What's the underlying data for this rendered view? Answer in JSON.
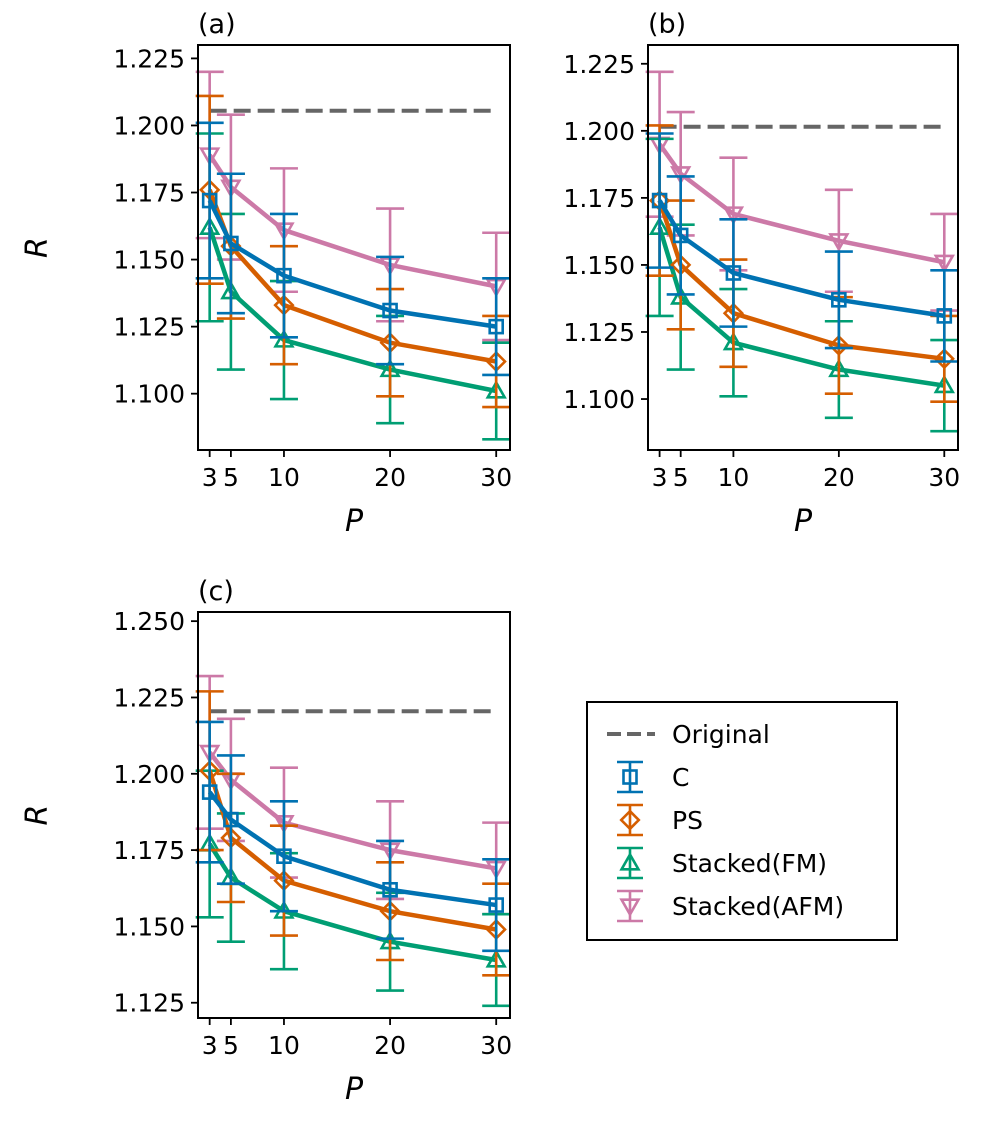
{
  "colors": {
    "C": "#0072b2",
    "PS": "#d55e00",
    "Stacked(FM)": "#009e73",
    "Stacked(AFM)": "#cc79a7",
    "Original": "#666666"
  },
  "legend": {
    "placement": "right of panel (c)",
    "entries": [
      {
        "label": "Original",
        "style": "dashed-line"
      },
      {
        "label": "C",
        "marker": "square"
      },
      {
        "label": "PS",
        "marker": "diamond"
      },
      {
        "label": "Stacked(FM)",
        "marker": "triangle-up"
      },
      {
        "label": "Stacked(AFM)",
        "marker": "triangle-down"
      }
    ]
  },
  "chart_data": [
    {
      "panel": "(a)",
      "type": "line",
      "xlabel": "P",
      "ylabel": "R",
      "x": [
        3,
        5,
        10,
        20,
        30
      ],
      "xticks": [
        3,
        5,
        10,
        20,
        30
      ],
      "yticks": [
        1.1,
        1.125,
        1.15,
        1.175,
        1.2,
        1.225
      ],
      "ytick_labels": [
        "1.100",
        "1.125",
        "1.150",
        "1.175",
        "1.200",
        "1.225"
      ],
      "ylim": [
        1.079,
        1.23
      ],
      "original": 1.2055,
      "series": [
        {
          "name": "C",
          "values": [
            1.172,
            1.156,
            1.144,
            1.131,
            1.125
          ],
          "err": [
            0.029,
            0.026,
            0.023,
            0.02,
            0.018
          ]
        },
        {
          "name": "PS",
          "values": [
            1.176,
            1.155,
            1.133,
            1.119,
            1.112
          ],
          "err": [
            0.035,
            0.027,
            0.022,
            0.02,
            0.017
          ]
        },
        {
          "name": "Stacked(FM)",
          "values": [
            1.162,
            1.138,
            1.12,
            1.109,
            1.101
          ],
          "err": [
            0.035,
            0.029,
            0.022,
            0.02,
            0.018
          ]
        },
        {
          "name": "Stacked(AFM)",
          "values": [
            1.189,
            1.177,
            1.161,
            1.148,
            1.14
          ],
          "err": [
            0.031,
            0.027,
            0.023,
            0.021,
            0.02
          ]
        }
      ]
    },
    {
      "panel": "(b)",
      "type": "line",
      "xlabel": "P",
      "ylabel": "",
      "x": [
        3,
        5,
        10,
        20,
        30
      ],
      "xticks": [
        3,
        5,
        10,
        20,
        30
      ],
      "yticks": [
        1.1,
        1.125,
        1.15,
        1.175,
        1.2,
        1.225
      ],
      "ytick_labels": [
        "1.100",
        "1.125",
        "1.150",
        "1.175",
        "1.200",
        "1.225"
      ],
      "ylim": [
        1.081,
        1.232
      ],
      "original": 1.2015,
      "series": [
        {
          "name": "C",
          "values": [
            1.174,
            1.161,
            1.147,
            1.137,
            1.131
          ],
          "err": [
            0.025,
            0.022,
            0.02,
            0.018,
            0.017
          ]
        },
        {
          "name": "PS",
          "values": [
            1.174,
            1.15,
            1.132,
            1.12,
            1.115
          ],
          "err": [
            0.028,
            0.024,
            0.02,
            0.018,
            0.016
          ]
        },
        {
          "name": "Stacked(FM)",
          "values": [
            1.164,
            1.138,
            1.121,
            1.111,
            1.105
          ],
          "err": [
            0.033,
            0.027,
            0.02,
            0.018,
            0.017
          ]
        },
        {
          "name": "Stacked(AFM)",
          "values": [
            1.195,
            1.184,
            1.169,
            1.159,
            1.151
          ],
          "err": [
            0.027,
            0.023,
            0.021,
            0.019,
            0.018
          ]
        }
      ]
    },
    {
      "panel": "(c)",
      "type": "line",
      "xlabel": "P",
      "ylabel": "R",
      "x": [
        3,
        5,
        10,
        20,
        30
      ],
      "xticks": [
        3,
        5,
        10,
        20,
        30
      ],
      "yticks": [
        1.125,
        1.15,
        1.175,
        1.2,
        1.225,
        1.25
      ],
      "ytick_labels": [
        "1.125",
        "1.150",
        "1.175",
        "1.200",
        "1.225",
        "1.250"
      ],
      "ylim": [
        1.12,
        1.253
      ],
      "original": 1.2205,
      "series": [
        {
          "name": "C",
          "values": [
            1.194,
            1.185,
            1.173,
            1.162,
            1.157
          ],
          "err": [
            0.023,
            0.021,
            0.018,
            0.016,
            0.015
          ]
        },
        {
          "name": "PS",
          "values": [
            1.201,
            1.179,
            1.165,
            1.155,
            1.149
          ],
          "err": [
            0.026,
            0.021,
            0.018,
            0.016,
            0.015
          ]
        },
        {
          "name": "Stacked(FM)",
          "values": [
            1.177,
            1.166,
            1.155,
            1.145,
            1.139
          ],
          "err": [
            0.024,
            0.021,
            0.019,
            0.016,
            0.015
          ]
        },
        {
          "name": "Stacked(AFM)",
          "values": [
            1.207,
            1.198,
            1.184,
            1.175,
            1.169
          ],
          "err": [
            0.025,
            0.02,
            0.018,
            0.016,
            0.015
          ]
        }
      ]
    }
  ]
}
